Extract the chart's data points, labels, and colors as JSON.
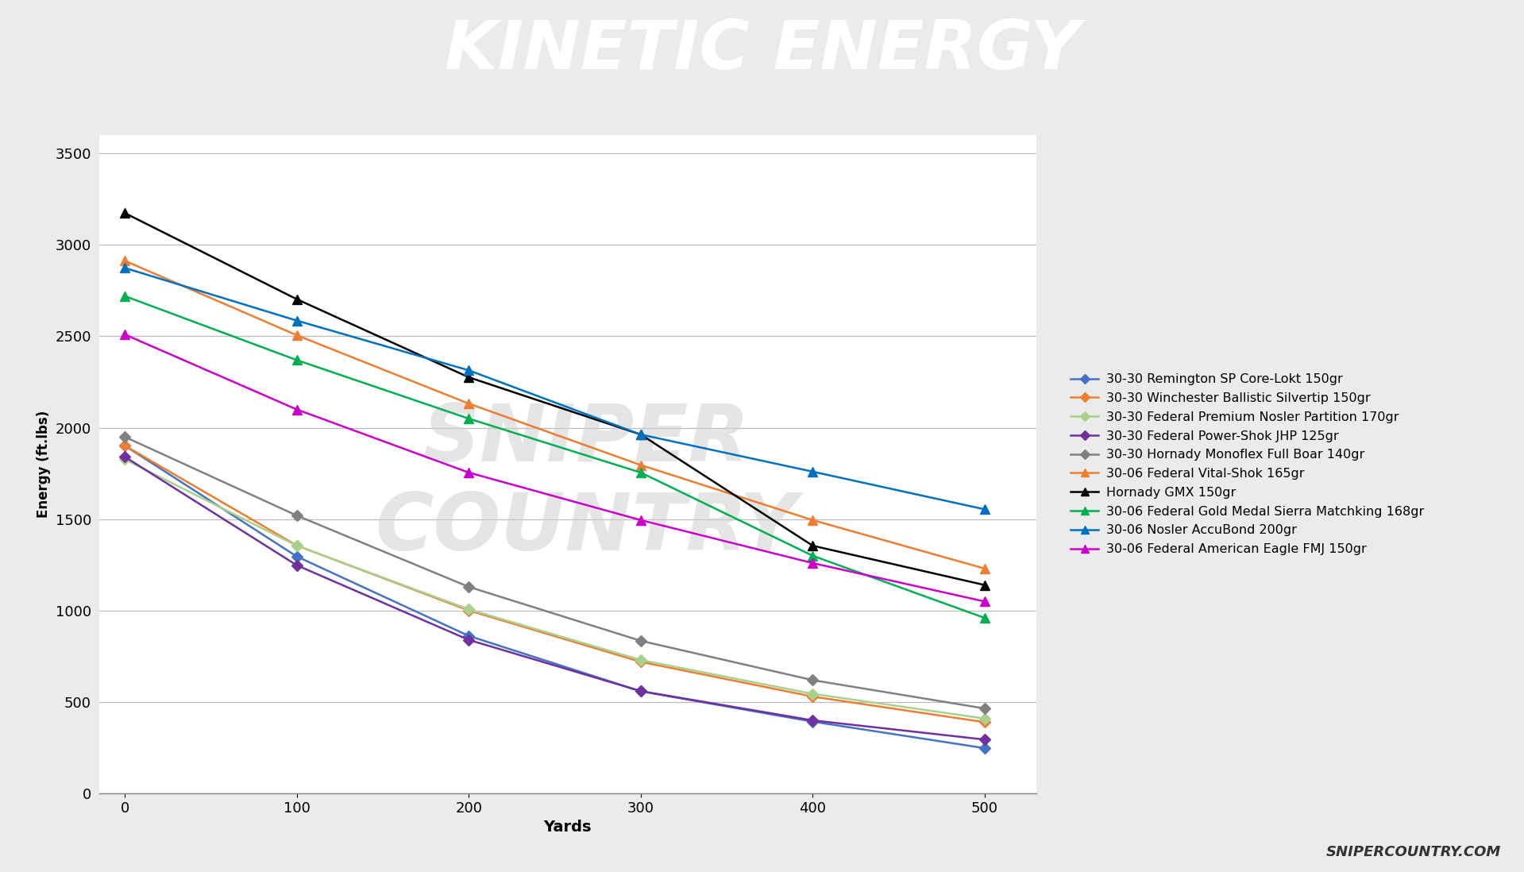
{
  "title": "KINETIC ENERGY",
  "xlabel": "Yards",
  "ylabel": "Energy (ft.lbs)",
  "chart_bg_color": "#ffffff",
  "outer_bg_color": "#ebebeb",
  "title_bg_color": "#555555",
  "stripe_color": "#e8615a",
  "series": [
    {
      "label": "30-30 Remington SP Core-Lokt 150gr",
      "color": "#4472c4",
      "marker": "D",
      "markersize": 7,
      "values": [
        1902,
        1296,
        862,
        559,
        393,
        248
      ]
    },
    {
      "label": "30-30 Winchester Ballistic Silvertip 150gr",
      "color": "#ed7d31",
      "marker": "D",
      "markersize": 7,
      "values": [
        1902,
        1356,
        1001,
        720,
        530,
        390
      ]
    },
    {
      "label": "30-30 Federal Premium Nosler Partition 170gr",
      "color": "#a9d18e",
      "marker": "D",
      "markersize": 7,
      "values": [
        1827,
        1355,
        1007,
        730,
        545,
        410
      ]
    },
    {
      "label": "30-30 Federal Power-Shok JHP 125gr",
      "color": "#7030a0",
      "marker": "D",
      "markersize": 7,
      "values": [
        1841,
        1248,
        840,
        560,
        400,
        295
      ]
    },
    {
      "label": "30-30 Hornady Monoflex Full Boar 140gr",
      "color": "#808080",
      "marker": "D",
      "markersize": 7,
      "values": [
        1950,
        1520,
        1130,
        835,
        620,
        465
      ]
    },
    {
      "label": "30-06 Federal Vital-Shok 165gr",
      "color": "#ed7d31",
      "marker": "^",
      "markersize": 8,
      "values": [
        2913,
        2506,
        2132,
        1796,
        1495,
        1230
      ]
    },
    {
      "label": "Hornady GMX 150gr",
      "color": "#000000",
      "marker": "^",
      "markersize": 8,
      "values": [
        3174,
        2703,
        2276,
        1963,
        1355,
        1140
      ]
    },
    {
      "label": "30-06 Federal Gold Medal Sierra Matchking 168gr",
      "color": "#00b050",
      "marker": "^",
      "markersize": 8,
      "values": [
        2720,
        2370,
        2050,
        1755,
        1300,
        960
      ]
    },
    {
      "label": "30-06 Nosler AccuBond 200gr",
      "color": "#0070c0",
      "marker": "^",
      "markersize": 8,
      "values": [
        2874,
        2586,
        2314,
        1963,
        1760,
        1554
      ]
    },
    {
      "label": "30-06 Federal American Eagle FMJ 150gr",
      "color": "#cc00cc",
      "marker": "^",
      "markersize": 8,
      "values": [
        2510,
        2100,
        1755,
        1495,
        1260,
        1050
      ]
    }
  ],
  "yards": [
    0,
    100,
    200,
    300,
    400,
    500
  ],
  "ylim": [
    0,
    3600
  ],
  "xlim": [
    -15,
    530
  ],
  "yticks": [
    0,
    500,
    1000,
    1500,
    2000,
    2500,
    3000,
    3500
  ],
  "xticks": [
    0,
    100,
    200,
    300,
    400,
    500
  ],
  "credit": "SNIPERCOUNTRY.COM"
}
